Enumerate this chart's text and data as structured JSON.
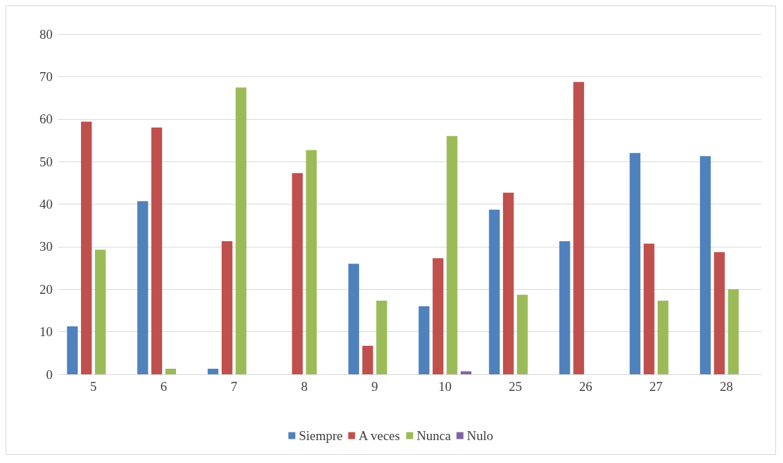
{
  "chart_data": {
    "type": "bar",
    "categories": [
      "5",
      "6",
      "7",
      "8",
      "9",
      "10",
      "25",
      "26",
      "27",
      "28"
    ],
    "series": [
      {
        "name": "Siempre",
        "color": "#4f81bd",
        "values": [
          11.3,
          40.7,
          1.3,
          0,
          26,
          16,
          38.7,
          31.3,
          52,
          51.3
        ]
      },
      {
        "name": "A veces",
        "color": "#c0504d",
        "values": [
          59.4,
          58,
          31.3,
          47.3,
          6.7,
          27.3,
          42.7,
          68.7,
          30.7,
          28.7
        ]
      },
      {
        "name": "Nunca",
        "color": "#9bbb59",
        "values": [
          29.3,
          1.3,
          67.4,
          52.7,
          17.3,
          56,
          18.7,
          0,
          17.3,
          20
        ]
      },
      {
        "name": "Nulo",
        "color": "#8064a2",
        "values": [
          0,
          0,
          0,
          0,
          0,
          0.7,
          0,
          0,
          0,
          0
        ]
      }
    ],
    "ylim": [
      0,
      80
    ],
    "yticks": [
      0,
      10,
      20,
      30,
      40,
      50,
      60,
      70,
      80
    ],
    "grid": "y",
    "legend": "bottom"
  }
}
